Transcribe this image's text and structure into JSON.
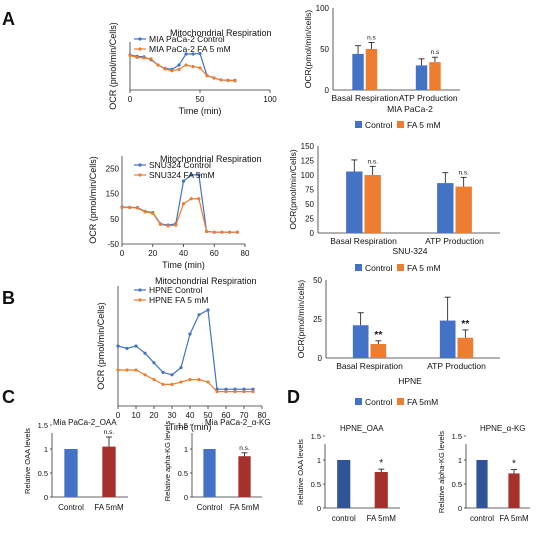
{
  "panel_labels": {
    "A": "A",
    "B": "B",
    "C": "C",
    "D": "D"
  },
  "colors": {
    "blue": "#4472C4",
    "orange": "#ED7D31",
    "bar_blue": "#4472C4",
    "bar_orange": "#ED7D31",
    "bar_navy": "#2F5597",
    "bar_red": "#A5302C"
  },
  "chart_data": [
    {
      "id": "A-line",
      "type": "line",
      "title": "Mitochondrial Respiration",
      "xlabel": "Time  (min)",
      "ylabel": "OCR (pmol/min/Cells)",
      "xlim": [
        0,
        100
      ],
      "ylim": [
        0,
        100
      ],
      "xticks": [
        "0",
        "50",
        "100"
      ],
      "series": [
        {
          "name": "MIA PaCa-2 Control",
          "color": "blue",
          "x": [
            0,
            5,
            10,
            15,
            20,
            25,
            30,
            35,
            40,
            45,
            50,
            55,
            60,
            65,
            70,
            75
          ],
          "y": [
            73,
            70,
            69,
            63,
            52,
            45,
            43,
            52,
            75,
            75,
            76,
            30,
            25,
            21,
            20,
            20
          ]
        },
        {
          "name": "MIA PaCa-2 FA 5 mM",
          "color": "orange",
          "x": [
            0,
            5,
            10,
            15,
            20,
            25,
            30,
            35,
            40,
            45,
            50,
            55,
            60,
            65,
            70,
            75
          ],
          "y": [
            72,
            68,
            67,
            65,
            52,
            44,
            40,
            43,
            52,
            49,
            46,
            30,
            25,
            21,
            20,
            19
          ]
        }
      ]
    },
    {
      "id": "A-bar",
      "type": "bar",
      "title": "MIA PaCa-2",
      "ylabel": "OCR(pmol/min/cells)",
      "categories": [
        "Basal Respiration",
        "ATP Production"
      ],
      "ylim": [
        0,
        100
      ],
      "yticks": [
        "0",
        "50",
        "100"
      ],
      "annotations": [
        "",
        "n.s",
        "",
        "n.s"
      ],
      "legend": [
        "Control",
        "FA 5 mM"
      ],
      "series": [
        {
          "name": "Control",
          "color": "bar_blue",
          "values": [
            44,
            30
          ],
          "errors": [
            10,
            8
          ]
        },
        {
          "name": "FA 5 mM",
          "color": "bar_orange",
          "values": [
            50,
            34
          ],
          "errors": [
            8,
            6
          ]
        }
      ]
    },
    {
      "id": "A2-line",
      "type": "line",
      "title": "Mitochondrial Respiration",
      "xlabel": "Time  (min)",
      "ylabel": "OCR (pmol/min/Cells)",
      "xlim": [
        0,
        80
      ],
      "ylim": [
        -50,
        300
      ],
      "xticks": [
        "0",
        "20",
        "40",
        "60",
        "80"
      ],
      "yticks": [
        "-50",
        "50",
        "150",
        "250"
      ],
      "series": [
        {
          "name": "SNU324 Control",
          "color": "blue",
          "x": [
            0,
            5,
            10,
            15,
            20,
            25,
            30,
            35,
            40,
            45,
            50,
            55,
            60,
            65,
            70,
            75
          ],
          "y": [
            97,
            96,
            95,
            80,
            75,
            30,
            25,
            30,
            200,
            225,
            225,
            0,
            -3,
            -3,
            -3,
            -3
          ]
        },
        {
          "name": "SNU324 FA 5mM",
          "color": "orange",
          "x": [
            0,
            5,
            10,
            15,
            20,
            25,
            30,
            35,
            40,
            45,
            50,
            55,
            60,
            65,
            70,
            75
          ],
          "y": [
            95,
            95,
            93,
            78,
            72,
            28,
            22,
            25,
            110,
            130,
            130,
            0,
            -3,
            -3,
            -3,
            -3
          ]
        }
      ]
    },
    {
      "id": "A2-bar",
      "type": "bar",
      "title": "SNU-324",
      "ylabel": "OCR(pmol/min/Cells)",
      "categories": [
        "Basal Respiration",
        "ATP Production"
      ],
      "ylim": [
        0,
        150
      ],
      "yticks": [
        "0",
        "25",
        "50",
        "75",
        "100",
        "125",
        "150"
      ],
      "annotations": [
        "",
        "n.s.",
        "",
        "n.s."
      ],
      "legend": [
        "Control",
        "FA 5 mM"
      ],
      "series": [
        {
          "name": "Control",
          "color": "bar_blue",
          "values": [
            106,
            86
          ],
          "errors": [
            20,
            18
          ]
        },
        {
          "name": "FA 5 mM",
          "color": "bar_orange",
          "values": [
            100,
            80
          ],
          "errors": [
            15,
            16
          ]
        }
      ]
    },
    {
      "id": "B-line",
      "type": "line",
      "title": "Mitochondrial Respiration",
      "xlabel": "Time (min)",
      "ylabel": "OCR  (pmol/min/Cells)",
      "xlim": [
        0,
        80
      ],
      "ylim": [
        0,
        50
      ],
      "xticks": [
        "0",
        "10",
        "20",
        "30",
        "40",
        "50",
        "60",
        "70",
        "80"
      ],
      "series": [
        {
          "name": "HPNE Control",
          "color": "blue",
          "x": [
            0,
            5,
            10,
            15,
            20,
            25,
            30,
            35,
            40,
            45,
            50,
            55,
            60,
            65,
            70,
            75
          ],
          "y": [
            25,
            24,
            25,
            22,
            18,
            14,
            13,
            16,
            30,
            38,
            40,
            7,
            7,
            7,
            7,
            7
          ]
        },
        {
          "name": "HPNE FA 5 mM",
          "color": "orange",
          "x": [
            0,
            5,
            10,
            15,
            20,
            25,
            30,
            35,
            40,
            45,
            50,
            55,
            60,
            65,
            70,
            75
          ],
          "y": [
            15,
            15,
            15,
            13,
            11,
            9,
            9,
            10,
            11,
            11,
            10,
            6,
            6,
            6,
            6,
            6
          ]
        }
      ]
    },
    {
      "id": "B-bar",
      "type": "bar",
      "title": "HPNE",
      "ylabel": "OCR(pmol/min/cells)",
      "categories": [
        "Basal Respiration",
        "ATP Production"
      ],
      "ylim": [
        0,
        50
      ],
      "yticks": [
        "0",
        "25",
        "50"
      ],
      "annotations": [
        "",
        "**",
        "",
        "**"
      ],
      "legend": [
        "Control",
        "FA 5mM"
      ],
      "series": [
        {
          "name": "Control",
          "color": "bar_blue",
          "values": [
            21,
            24
          ],
          "errors": [
            8,
            15
          ]
        },
        {
          "name": "FA 5mM",
          "color": "bar_orange",
          "values": [
            9,
            13
          ],
          "errors": [
            2,
            5
          ]
        }
      ]
    },
    {
      "id": "C1-bar",
      "type": "bar",
      "title": "Mia  PaCa-2_OAA",
      "ylabel": "Relative OAA levels",
      "categories": [
        "Control",
        "FA 5mM"
      ],
      "ylim": [
        0,
        1.5
      ],
      "yticks": [
        "0",
        "0.5",
        "1",
        "1.5"
      ],
      "annotations": [
        "",
        "n.s."
      ],
      "values": [
        1,
        1.05
      ],
      "errors": [
        0,
        0.2
      ],
      "colors": [
        "bar_blue",
        "bar_red"
      ]
    },
    {
      "id": "C2-bar",
      "type": "bar",
      "title": "Mia  PaCa-2_α-KG",
      "ylabel": "Relative apha-KG levels",
      "categories": [
        "Control",
        "FA 5mM"
      ],
      "ylim": [
        0,
        1.5
      ],
      "yticks": [
        "0",
        "0.5",
        "1",
        "1.5"
      ],
      "annotations": [
        "",
        "n.s."
      ],
      "values": [
        1,
        0.85
      ],
      "errors": [
        0,
        0.07
      ],
      "colors": [
        "bar_blue",
        "bar_red"
      ]
    },
    {
      "id": "D1-bar",
      "type": "bar",
      "title": "HPNE_OAA",
      "ylabel": "Relative OAA levels",
      "categories": [
        "control",
        "FA 5mM"
      ],
      "ylim": [
        0,
        1.5
      ],
      "yticks": [
        "0",
        "0.5",
        "1",
        "1.5"
      ],
      "annotations": [
        "",
        "*"
      ],
      "values": [
        1,
        0.75
      ],
      "errors": [
        0,
        0.06
      ],
      "colors": [
        "bar_navy",
        "bar_red"
      ]
    },
    {
      "id": "D2-bar",
      "type": "bar",
      "title": "HPNE_α-KG",
      "ylabel": "Relative alpha-KG levels",
      "categories": [
        "control",
        "FA 5mM"
      ],
      "ylim": [
        0,
        1.5
      ],
      "yticks": [
        "0",
        "0.5",
        "1",
        "1.5"
      ],
      "annotations": [
        "",
        "*"
      ],
      "values": [
        1,
        0.72
      ],
      "errors": [
        0,
        0.08
      ],
      "colors": [
        "bar_navy",
        "bar_red"
      ]
    }
  ]
}
